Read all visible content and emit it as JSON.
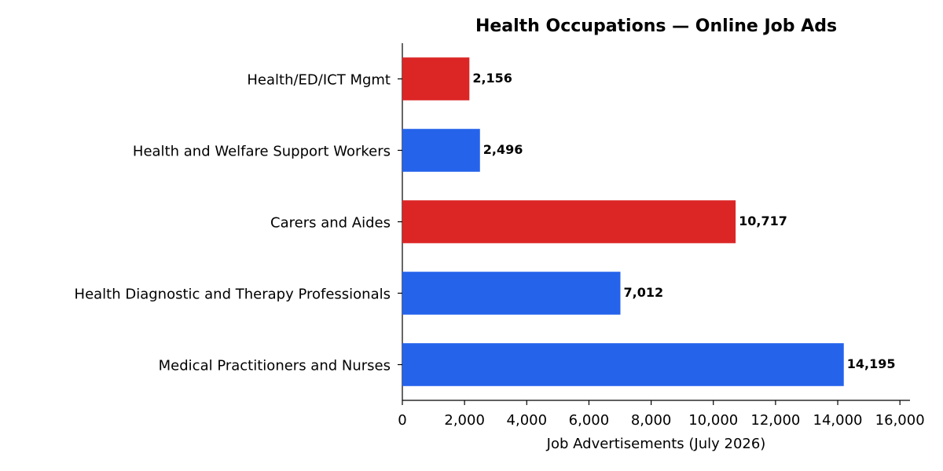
{
  "chart_data": {
    "type": "hbar",
    "title": "Health Occupations — Online Job Ads",
    "xlabel": "Job Advertisements (July 2026)",
    "categories": [
      "Health/ED/ICT Mgmt",
      "Health and Welfare Support Workers",
      "Carers and Aides",
      "Health Diagnostic and Therapy Professionals",
      "Medical Practitioners and Nurses"
    ],
    "values": [
      2156,
      2496,
      10717,
      7012,
      14195
    ],
    "value_labels": [
      "2,156",
      "2,496",
      "10,717",
      "7,012",
      "14,195"
    ],
    "colors": [
      "#dc2626",
      "#2563eb",
      "#dc2626",
      "#2563eb",
      "#2563eb"
    ],
    "xlim": [
      0,
      16324
    ],
    "xticks": [
      0,
      {
        "value": 2000,
        "label": "2,000"
      },
      {
        "value": 4000,
        "label": "4,000"
      },
      {
        "value": 6000,
        "label": "6,000"
      },
      {
        "value": 8000,
        "label": "8,000"
      },
      {
        "value": 10000,
        "label": "10,000"
      },
      {
        "value": 12000,
        "label": "12,000"
      },
      {
        "value": 14000,
        "label": "14,000"
      },
      {
        "value": 16000,
        "label": "16,000"
      }
    ],
    "grid": false
  }
}
